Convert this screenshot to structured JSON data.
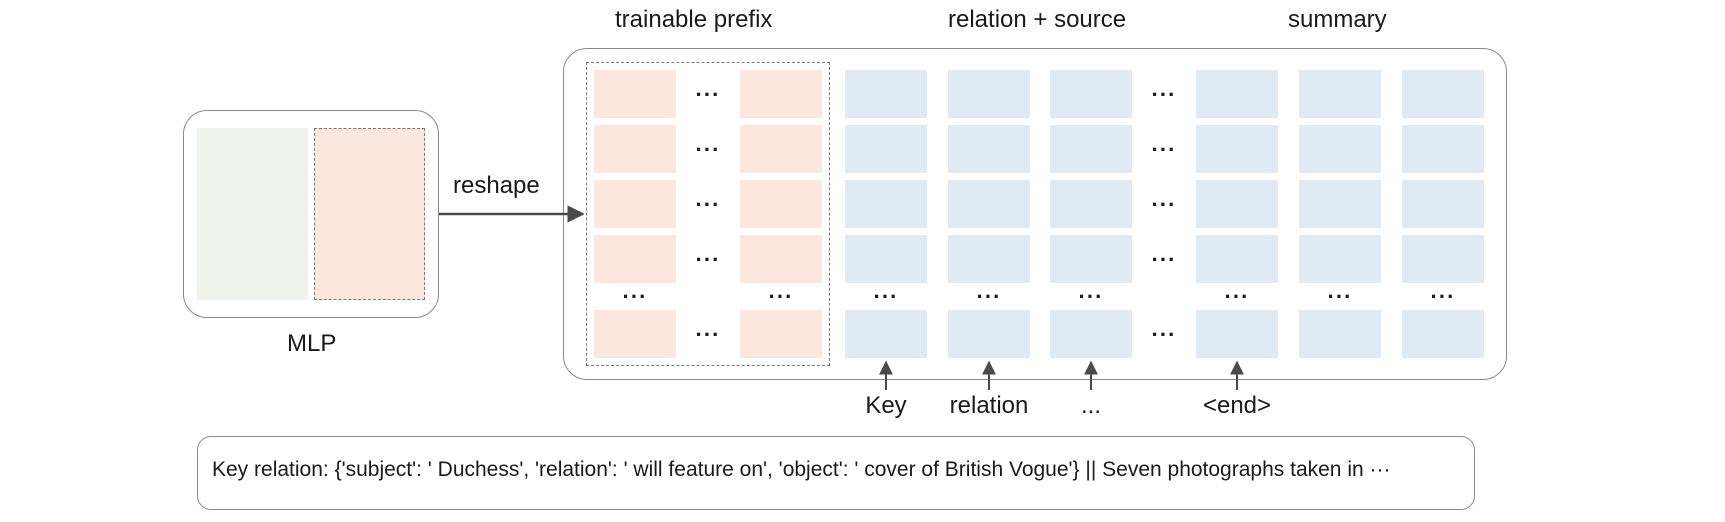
{
  "headers": {
    "trainable_prefix": "trainable prefix",
    "relation_source": "relation + source",
    "summary": "summary"
  },
  "mlp": {
    "label": "MLP",
    "arrow_label": "reshape"
  },
  "ellipsis": "···",
  "inputs": {
    "key": "Key",
    "relation": "relation",
    "more": "...",
    "end": "<end>"
  },
  "example_text": "Key relation: {'subject': ' Duchess', 'relation': ' will feature on', 'object': ' cover of British Vogue'} || Seven photographs taken in ···",
  "colors": {
    "prefix_cell": "#fbe7dd",
    "source_cell": "#dfeaf4",
    "mlp_left": "#eef2e8",
    "border": "#8a8a8a"
  }
}
